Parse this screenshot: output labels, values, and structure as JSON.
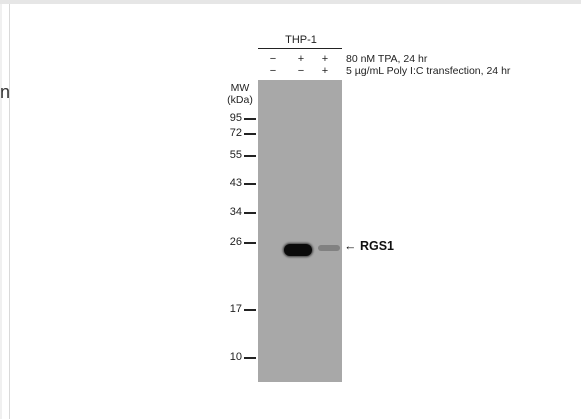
{
  "cell_line": "THP-1",
  "conditions": [
    {
      "label": "80 nM TPA, 24 hr",
      "signs": [
        "−",
        "+",
        "+"
      ]
    },
    {
      "label": "5 µg/mL Poly I:C transfection, 24 hr",
      "signs": [
        "−",
        "−",
        "+"
      ]
    }
  ],
  "mw_header_line1": "MW",
  "mw_header_line2": "(kDa)",
  "markers": [
    "95",
    "72",
    "55",
    "43",
    "34",
    "26",
    "17",
    "10"
  ],
  "target_label": "← RGS1",
  "stray_text": "n",
  "colors": {
    "membrane": "#a8a8a8",
    "band": "#0a0a0a",
    "text": "#222222"
  }
}
